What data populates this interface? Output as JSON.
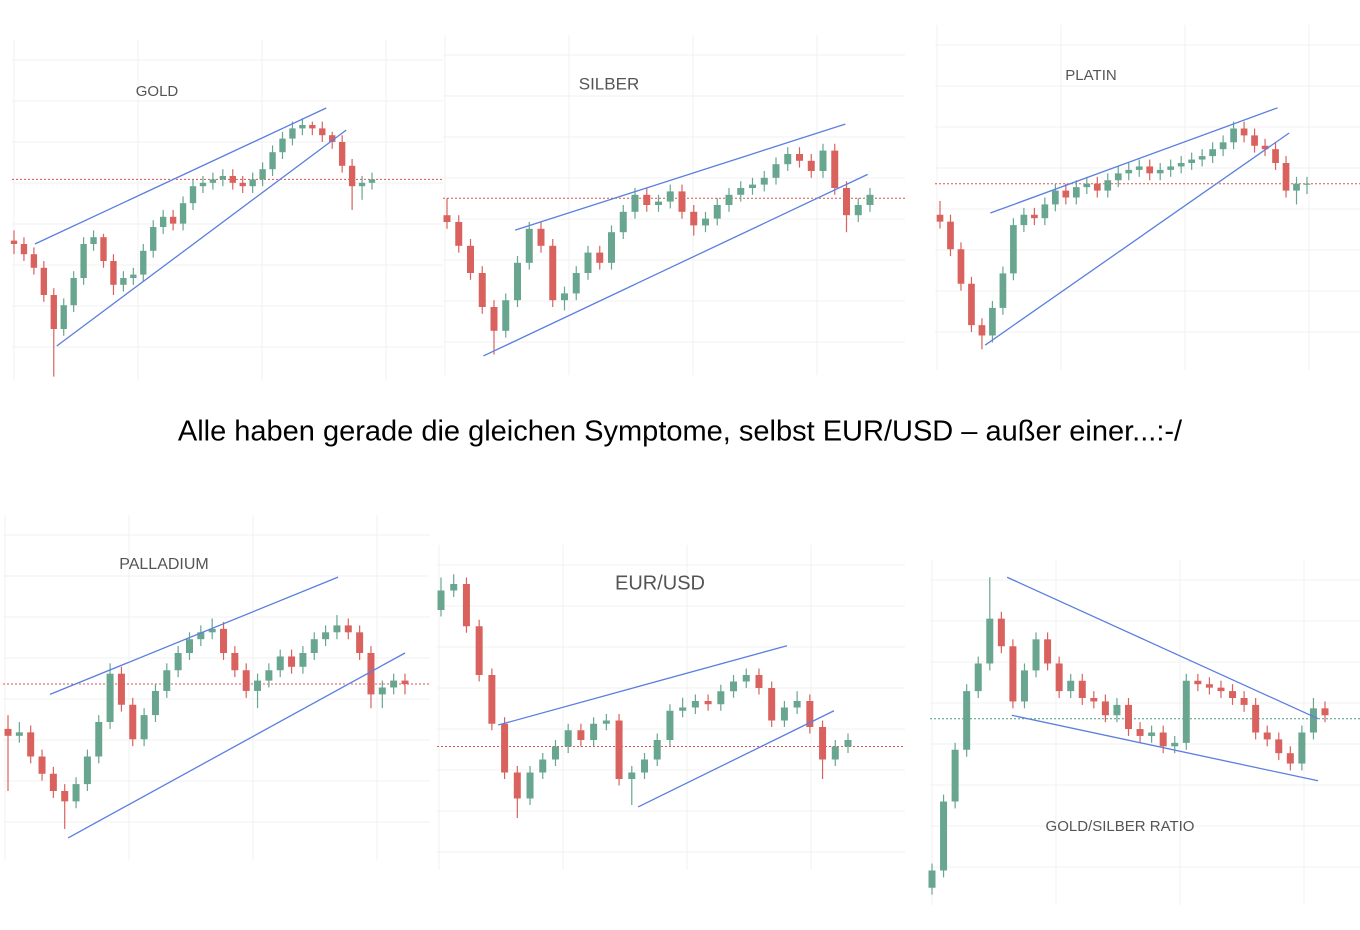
{
  "caption": "Alle haben gerade die gleichen Symptome, selbst EUR/USD – außer einer...:-/",
  "chart_data": [
    {
      "type": "candlestick",
      "title": "GOLD",
      "ylim": [
        0,
        100
      ],
      "up_color": "#68a690",
      "down_color": "#d9625f",
      "trend_color": "#5b7fe0",
      "hline": 59,
      "hline_color": "#d9534f",
      "trendlines": [
        [
          2.1,
          40,
          31.4,
          80
        ],
        [
          4.3,
          10,
          33.4,
          73.5
        ]
      ],
      "candles": [
        [
          41,
          44,
          37,
          40
        ],
        [
          40,
          42,
          35,
          37
        ],
        [
          37,
          39,
          31,
          33
        ],
        [
          33,
          35,
          23,
          25
        ],
        [
          25,
          27,
          1,
          15
        ],
        [
          15,
          24,
          13,
          22
        ],
        [
          22,
          32,
          20,
          30
        ],
        [
          30,
          42,
          28,
          40
        ],
        [
          40,
          44,
          38,
          42
        ],
        [
          42,
          43,
          33,
          35
        ],
        [
          35,
          37,
          25,
          28
        ],
        [
          28,
          32,
          26,
          30
        ],
        [
          30,
          33,
          28,
          31
        ],
        [
          31,
          40,
          29,
          38
        ],
        [
          38,
          47,
          36,
          45
        ],
        [
          45,
          50,
          43,
          48
        ],
        [
          48,
          50,
          44,
          46
        ],
        [
          46,
          54,
          44,
          52
        ],
        [
          52,
          59,
          50,
          57
        ],
        [
          57,
          60,
          55,
          58
        ],
        [
          58,
          61,
          56,
          59
        ],
        [
          59,
          62,
          57,
          60
        ],
        [
          60,
          62,
          56,
          58
        ],
        [
          58,
          60,
          55,
          57
        ],
        [
          57,
          61,
          55,
          59
        ],
        [
          59,
          64,
          57,
          62
        ],
        [
          62,
          69,
          60,
          67
        ],
        [
          67,
          73,
          65,
          71
        ],
        [
          71,
          76,
          69,
          74
        ],
        [
          74,
          77,
          72,
          75
        ],
        [
          75,
          76,
          72,
          74
        ],
        [
          74,
          76,
          70,
          72
        ],
        [
          72,
          73,
          68,
          70
        ],
        [
          70,
          72,
          61,
          63
        ],
        [
          63,
          65,
          50,
          57
        ],
        [
          57,
          60,
          53,
          58
        ],
        [
          58,
          61,
          56,
          59
        ]
      ]
    },
    {
      "type": "candlestick",
      "title": "SILBER",
      "ylim": [
        0,
        100
      ],
      "up_color": "#68a690",
      "down_color": "#d9625f",
      "trend_color": "#5b7fe0",
      "hline": 52,
      "hline_color": "#d9534f",
      "trendlines": [
        [
          5.8,
          42.6,
          33.9,
          73.8
        ],
        [
          3.1,
          5.6,
          35.8,
          59
        ]
      ],
      "candles": [
        [
          47,
          52,
          43,
          45
        ],
        [
          45,
          47,
          36,
          38
        ],
        [
          38,
          40,
          28,
          30
        ],
        [
          30,
          32,
          18,
          20
        ],
        [
          20,
          22,
          6,
          13
        ],
        [
          13,
          24,
          11,
          22
        ],
        [
          22,
          35,
          20,
          33
        ],
        [
          33,
          45,
          31,
          43
        ],
        [
          43,
          45,
          36,
          38
        ],
        [
          38,
          40,
          20,
          22
        ],
        [
          22,
          26,
          19,
          24
        ],
        [
          24,
          32,
          22,
          30
        ],
        [
          30,
          38,
          28,
          36
        ],
        [
          36,
          38,
          31,
          33
        ],
        [
          33,
          44,
          31,
          42
        ],
        [
          42,
          50,
          40,
          48
        ],
        [
          48,
          55,
          46,
          53
        ],
        [
          53,
          55,
          48,
          50
        ],
        [
          50,
          53,
          48,
          51
        ],
        [
          51,
          56,
          49,
          54
        ],
        [
          54,
          56,
          46,
          48
        ],
        [
          48,
          50,
          41,
          44
        ],
        [
          44,
          48,
          42,
          46
        ],
        [
          46,
          52,
          44,
          50
        ],
        [
          50,
          55,
          48,
          53
        ],
        [
          53,
          57,
          51,
          55
        ],
        [
          55,
          58,
          53,
          56
        ],
        [
          56,
          60,
          54,
          58
        ],
        [
          58,
          64,
          56,
          62
        ],
        [
          62,
          67,
          60,
          65
        ],
        [
          65,
          67,
          61,
          63
        ],
        [
          63,
          65,
          58,
          60
        ],
        [
          60,
          68,
          58,
          66
        ],
        [
          66,
          68,
          53,
          55
        ],
        [
          55,
          57,
          42,
          47
        ],
        [
          47,
          52,
          45,
          50
        ],
        [
          50,
          55,
          48,
          53
        ]
      ]
    },
    {
      "type": "candlestick",
      "title": "PLATIN",
      "ylim": [
        0,
        100
      ],
      "up_color": "#68a690",
      "down_color": "#d9625f",
      "trend_color": "#5b7fe0",
      "hline": 54,
      "hline_color": "#d9534f",
      "trendlines": [
        [
          4.8,
          45.5,
          32.2,
          76
        ],
        [
          4.3,
          7.2,
          33.3,
          68.7
        ]
      ],
      "candles": [
        [
          45,
          49,
          41,
          43
        ],
        [
          43,
          45,
          33,
          35
        ],
        [
          35,
          37,
          23,
          25
        ],
        [
          25,
          27,
          11,
          13
        ],
        [
          13,
          15,
          6,
          10
        ],
        [
          10,
          20,
          8,
          18
        ],
        [
          18,
          30,
          16,
          28
        ],
        [
          28,
          44,
          26,
          42
        ],
        [
          42,
          47,
          40,
          45
        ],
        [
          45,
          47,
          42,
          44
        ],
        [
          44,
          50,
          42,
          48
        ],
        [
          48,
          54,
          46,
          52
        ],
        [
          52,
          54,
          48,
          50
        ],
        [
          50,
          55,
          48,
          53
        ],
        [
          53,
          56,
          51,
          54
        ],
        [
          54,
          56,
          50,
          52
        ],
        [
          52,
          57,
          50,
          55
        ],
        [
          55,
          59,
          53,
          57
        ],
        [
          57,
          60,
          55,
          58
        ],
        [
          58,
          61,
          56,
          59
        ],
        [
          59,
          61,
          55,
          57
        ],
        [
          57,
          60,
          55,
          58
        ],
        [
          58,
          61,
          56,
          59
        ],
        [
          59,
          62,
          57,
          60
        ],
        [
          60,
          63,
          58,
          61
        ],
        [
          61,
          64,
          59,
          62
        ],
        [
          62,
          66,
          60,
          64
        ],
        [
          64,
          68,
          62,
          66
        ],
        [
          66,
          72,
          64,
          70
        ],
        [
          70,
          72,
          66,
          68
        ],
        [
          68,
          70,
          63,
          65
        ],
        [
          65,
          67,
          62,
          64
        ],
        [
          64,
          66,
          58,
          60
        ],
        [
          60,
          62,
          50,
          52
        ],
        [
          52,
          56,
          48,
          54
        ],
        [
          54,
          56,
          51,
          54
        ]
      ]
    },
    {
      "type": "candlestick",
      "title": "PALLADIUM",
      "ylim": [
        0,
        100
      ],
      "up_color": "#68a690",
      "down_color": "#d9625f",
      "trend_color": "#5b7fe0",
      "hline": 51,
      "hline_color": "#d9534f",
      "trendlines": [
        [
          3.7,
          48,
          29.1,
          82
        ],
        [
          5.3,
          6.4,
          35,
          60
        ]
      ],
      "candles": [
        [
          38,
          42,
          20,
          36
        ],
        [
          36,
          40,
          34,
          37
        ],
        [
          37,
          39,
          28,
          30
        ],
        [
          30,
          32,
          23,
          25
        ],
        [
          25,
          27,
          18,
          20
        ],
        [
          20,
          22,
          9,
          17
        ],
        [
          17,
          24,
          15,
          22
        ],
        [
          22,
          32,
          20,
          30
        ],
        [
          30,
          42,
          28,
          40
        ],
        [
          40,
          57,
          38,
          54
        ],
        [
          54,
          56,
          43,
          45
        ],
        [
          45,
          47,
          33,
          35
        ],
        [
          35,
          44,
          33,
          42
        ],
        [
          42,
          51,
          40,
          49
        ],
        [
          49,
          57,
          47,
          55
        ],
        [
          55,
          62,
          53,
          60
        ],
        [
          60,
          66,
          58,
          64
        ],
        [
          64,
          68,
          62,
          66
        ],
        [
          66,
          70,
          64,
          67
        ],
        [
          67,
          69,
          58,
          60
        ],
        [
          60,
          62,
          53,
          55
        ],
        [
          55,
          57,
          47,
          49
        ],
        [
          49,
          54,
          44,
          52
        ],
        [
          52,
          57,
          50,
          55
        ],
        [
          55,
          61,
          53,
          59
        ],
        [
          59,
          61,
          54,
          56
        ],
        [
          56,
          62,
          54,
          60
        ],
        [
          60,
          66,
          58,
          64
        ],
        [
          64,
          68,
          62,
          66
        ],
        [
          66,
          71,
          64,
          68
        ],
        [
          68,
          70,
          64,
          66
        ],
        [
          66,
          68,
          58,
          60
        ],
        [
          60,
          62,
          44,
          48
        ],
        [
          48,
          52,
          44,
          50
        ],
        [
          50,
          54,
          48,
          52
        ],
        [
          52,
          54,
          48,
          51
        ]
      ]
    },
    {
      "type": "candlestick",
      "title": "EUR/USD",
      "ylim": [
        0,
        100
      ],
      "up_color": "#68a690",
      "down_color": "#d9625f",
      "trend_color": "#5b7fe0",
      "hline": 38,
      "hline_color": "#d9534f",
      "trendlines": [
        [
          4.5,
          44.6,
          27.2,
          69
        ],
        [
          15.5,
          19.4,
          30.9,
          49
        ]
      ],
      "candles": [
        [
          80,
          90,
          78,
          86
        ],
        [
          86,
          91,
          84,
          88
        ],
        [
          88,
          90,
          73,
          75
        ],
        [
          75,
          77,
          58,
          60
        ],
        [
          60,
          62,
          43,
          45
        ],
        [
          45,
          47,
          28,
          30
        ],
        [
          30,
          32,
          16,
          22
        ],
        [
          22,
          32,
          20,
          30
        ],
        [
          30,
          36,
          28,
          34
        ],
        [
          34,
          40,
          32,
          38
        ],
        [
          38,
          45,
          36,
          43
        ],
        [
          43,
          45,
          38,
          40
        ],
        [
          40,
          47,
          38,
          45
        ],
        [
          45,
          48,
          43,
          46
        ],
        [
          46,
          48,
          26,
          28
        ],
        [
          28,
          32,
          20,
          30
        ],
        [
          30,
          36,
          28,
          34
        ],
        [
          34,
          42,
          32,
          40
        ],
        [
          40,
          51,
          38,
          49
        ],
        [
          49,
          53,
          47,
          50
        ],
        [
          50,
          54,
          48,
          52
        ],
        [
          52,
          54,
          49,
          51
        ],
        [
          51,
          57,
          49,
          55
        ],
        [
          55,
          60,
          53,
          58
        ],
        [
          58,
          62,
          56,
          60
        ],
        [
          60,
          62,
          54,
          56
        ],
        [
          56,
          58,
          44,
          46
        ],
        [
          46,
          52,
          44,
          50
        ],
        [
          50,
          55,
          48,
          52
        ],
        [
          52,
          54,
          42,
          44
        ],
        [
          44,
          46,
          28,
          34
        ],
        [
          34,
          40,
          32,
          38
        ],
        [
          38,
          42,
          36,
          40
        ]
      ]
    },
    {
      "type": "candlestick",
      "title": "GOLD/SILBER RATIO",
      "ylim": [
        0,
        100
      ],
      "up_color": "#68a690",
      "down_color": "#d9625f",
      "trend_color": "#5b7fe0",
      "hline": 54,
      "hline_color": "#4f9a80",
      "trendlines": [
        [
          6.5,
          95,
          33.4,
          54
        ],
        [
          6.9,
          55,
          33.4,
          36
        ]
      ],
      "candles": [
        [
          5,
          12,
          3,
          10
        ],
        [
          10,
          32,
          8,
          30
        ],
        [
          30,
          47,
          28,
          45
        ],
        [
          45,
          64,
          43,
          62
        ],
        [
          62,
          72,
          60,
          70
        ],
        [
          70,
          95,
          68,
          83
        ],
        [
          83,
          85,
          73,
          75
        ],
        [
          75,
          77,
          57,
          59
        ],
        [
          59,
          70,
          57,
          68
        ],
        [
          68,
          79,
          66,
          77
        ],
        [
          77,
          79,
          68,
          70
        ],
        [
          70,
          72,
          60,
          62
        ],
        [
          62,
          67,
          60,
          65
        ],
        [
          65,
          67,
          58,
          60
        ],
        [
          60,
          62,
          57,
          59
        ],
        [
          59,
          61,
          53,
          55
        ],
        [
          55,
          60,
          53,
          58
        ],
        [
          58,
          60,
          49,
          51
        ],
        [
          51,
          53,
          47,
          49
        ],
        [
          49,
          52,
          47,
          50
        ],
        [
          50,
          52,
          44,
          46
        ],
        [
          46,
          49,
          44,
          47
        ],
        [
          47,
          67,
          45,
          65
        ],
        [
          65,
          67,
          62,
          64
        ],
        [
          64,
          66,
          61,
          63
        ],
        [
          63,
          65,
          60,
          62
        ],
        [
          62,
          64,
          58,
          60
        ],
        [
          60,
          62,
          56,
          58
        ],
        [
          58,
          60,
          48,
          50
        ],
        [
          50,
          52,
          46,
          48
        ],
        [
          48,
          50,
          42,
          44
        ],
        [
          44,
          46,
          39,
          41
        ],
        [
          41,
          52,
          39,
          50
        ],
        [
          50,
          60,
          48,
          57
        ],
        [
          57,
          59,
          53,
          55
        ]
      ]
    }
  ]
}
